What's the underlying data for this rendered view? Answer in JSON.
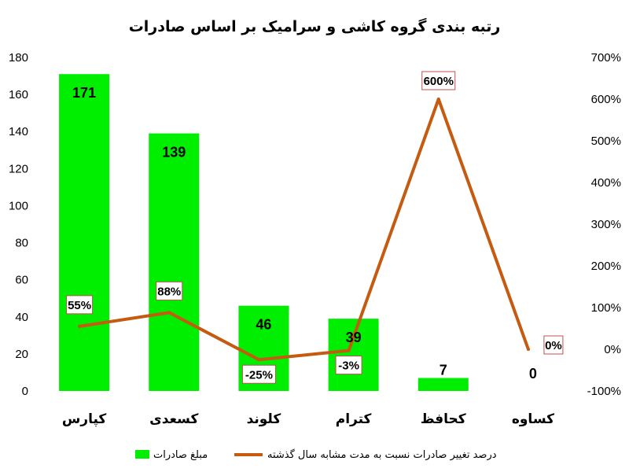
{
  "chart_data": {
    "type": "bar",
    "title": "رتبه بندی گروه کاشی و سرامیک بر اساس صادرات",
    "categories": [
      "کپارس",
      "کسعدی",
      "کلوند",
      "کترام",
      "کحافظ",
      "کساوه"
    ],
    "series": [
      {
        "name": "مبلغ صادرات",
        "type": "bar",
        "axis": "left",
        "color": "#00ee00",
        "values": [
          171,
          139,
          46,
          39,
          7,
          0
        ],
        "labels": [
          "171",
          "139",
          "46",
          "39",
          "7",
          "0"
        ]
      },
      {
        "name": "درصد تغییر صادرات نسبت به مدت مشابه سال گذشته",
        "type": "line",
        "axis": "right",
        "color": "#c55a11",
        "values": [
          55,
          88,
          -25,
          -3,
          600,
          0
        ],
        "labels": [
          "55%",
          "88%",
          "-25%",
          "-3%",
          "600%",
          "0%"
        ]
      }
    ],
    "y_left": {
      "ylim": [
        0,
        180
      ],
      "ticks": [
        "0",
        "20",
        "40",
        "60",
        "80",
        "100",
        "120",
        "140",
        "160",
        "180"
      ]
    },
    "y_right": {
      "ylim": [
        -100,
        700
      ],
      "ticks": [
        "-100%",
        "0%",
        "100%",
        "200%",
        "300%",
        "400%",
        "500%",
        "600%",
        "700%"
      ]
    },
    "grid": false,
    "legend_position": "bottom"
  }
}
